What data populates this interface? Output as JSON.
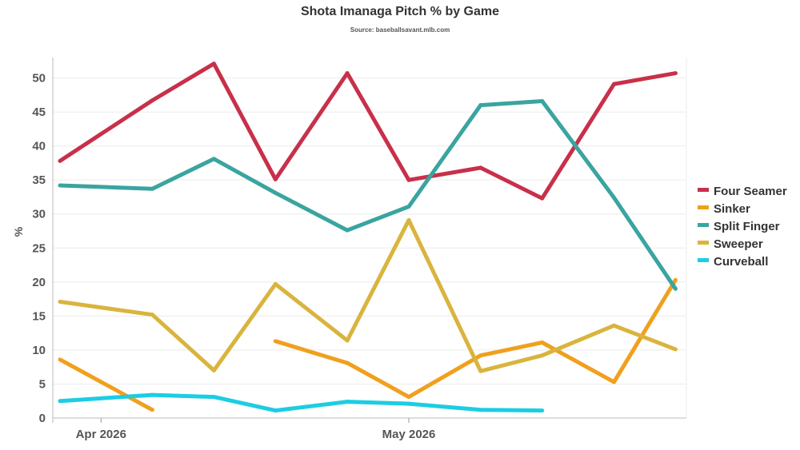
{
  "chart_data": {
    "type": "line",
    "title": "Shota Imanaga Pitch % by Game",
    "subtitle": "Source: baseballsavant.mlb.com",
    "ylabel": "%",
    "xlabel": "",
    "ylim": [
      0,
      53
    ],
    "yticks": [
      0,
      5,
      10,
      15,
      20,
      25,
      30,
      35,
      40,
      45,
      50
    ],
    "x_ticks": [
      {
        "label": "Apr 2026",
        "date": "2026-04-01"
      },
      {
        "label": "May 2026",
        "date": "2026-05-01"
      }
    ],
    "x": [
      "2026-03-28",
      "2026-04-06",
      "2026-04-12",
      "2026-04-18",
      "2026-04-25",
      "2026-05-01",
      "2026-05-08",
      "2026-05-14",
      "2026-05-21",
      "2026-05-27"
    ],
    "grid": true,
    "legend_position": "right",
    "series": [
      {
        "name": "Four Seamer",
        "color": "#c8304a",
        "values": [
          37.8,
          46.7,
          52.1,
          35.1,
          50.7,
          35.0,
          36.8,
          32.3,
          49.1,
          50.7
        ]
      },
      {
        "name": "Sinker",
        "color": "#f0a01e",
        "values": [
          8.6,
          1.2,
          null,
          11.3,
          8.1,
          3.1,
          9.2,
          11.1,
          5.3,
          20.3
        ]
      },
      {
        "name": "Split Finger",
        "color": "#3aa4a0",
        "values": [
          34.2,
          33.7,
          38.1,
          33.1,
          27.6,
          31.1,
          46.0,
          46.6,
          32.4,
          19.0
        ]
      },
      {
        "name": "Sweeper",
        "color": "#d9b43e",
        "values": [
          17.1,
          15.2,
          7.0,
          19.7,
          11.4,
          29.1,
          6.9,
          9.2,
          13.6,
          10.1
        ]
      },
      {
        "name": "Curveball",
        "color": "#1ccde3",
        "values": [
          2.5,
          3.4,
          3.1,
          1.1,
          2.4,
          2.1,
          1.2,
          1.1,
          null,
          null
        ]
      }
    ]
  }
}
